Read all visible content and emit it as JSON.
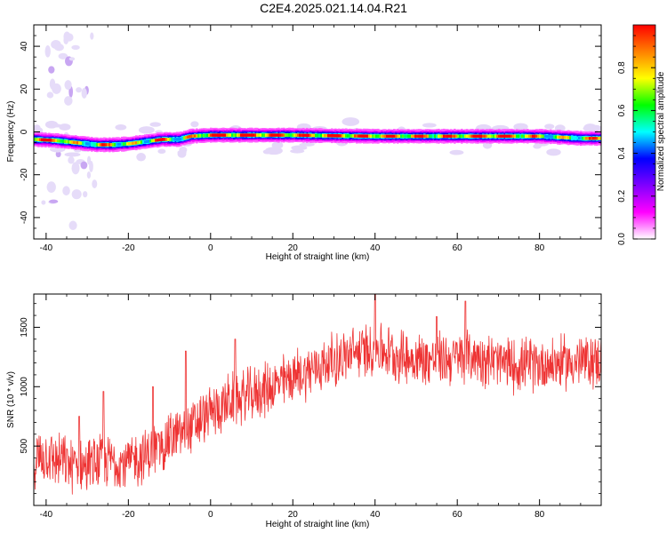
{
  "title": "C2E4.2025.021.14.04.R21",
  "chart_data": [
    {
      "type": "heatmap",
      "xlabel": "Height of straight line (km)",
      "ylabel": "Frequency (Hz)",
      "xlim": [
        -43,
        95
      ],
      "ylim": [
        -50,
        50
      ],
      "xticks": [
        -40,
        -20,
        0,
        20,
        40,
        60,
        80
      ],
      "yticks": [
        -40,
        -20,
        0,
        20,
        40
      ],
      "colorbar": {
        "label": "Normalized spectral amplitude",
        "range": [
          0,
          1
        ],
        "ticks": [
          0.0,
          0.2,
          0.4,
          0.6,
          0.8
        ],
        "tick_labels": [
          "0.0",
          "0.2",
          "0.4",
          "0.6",
          "0.8"
        ],
        "colormap": [
          "#ffffff",
          "#ff00ff",
          "#8000ff",
          "#0000ff",
          "#00ffff",
          "#00ff00",
          "#ffff00",
          "#ff8000",
          "#ff0000"
        ]
      },
      "ridge": {
        "x": [
          -43,
          -38,
          -33,
          -28,
          -24,
          -20,
          -16,
          -12,
          -8,
          -5,
          0,
          5,
          10,
          20,
          30,
          40,
          50,
          60,
          70,
          80,
          85,
          90,
          95
        ],
        "freq": [
          -3.5,
          -4,
          -5,
          -6,
          -6,
          -5.5,
          -4.5,
          -3.5,
          -3.5,
          -2,
          -1.5,
          -1.5,
          -1.5,
          -1.5,
          -1.8,
          -2,
          -2,
          -2,
          -2,
          -2,
          -2.5,
          -3,
          -3
        ],
        "amplitude": [
          0.8,
          0.9,
          0.6,
          0.7,
          0.8,
          0.6,
          0.7,
          0.9,
          0.5,
          0.7,
          0.95,
          0.9,
          0.95,
          0.85,
          0.9,
          0.85,
          0.8,
          0.85,
          0.95,
          0.7,
          0.6,
          0.7,
          0.8
        ]
      },
      "grid": false
    },
    {
      "type": "line",
      "xlabel": "Height of straight line (km)",
      "ylabel": "SNR (10 * v/v)",
      "xlim": [
        -43,
        95
      ],
      "ylim": [
        0,
        1780
      ],
      "xticks": [
        -40,
        -20,
        0,
        20,
        40,
        60,
        80
      ],
      "yticks": [
        500,
        1000,
        1500
      ],
      "series": [
        {
          "color": "#ee3333",
          "trend_x": [
            -43,
            -40,
            -35,
            -30,
            -25,
            -20,
            -15,
            -10,
            -5,
            0,
            5,
            10,
            15,
            20,
            25,
            30,
            35,
            40,
            45,
            50,
            55,
            60,
            65,
            70,
            75,
            80,
            85,
            90,
            95
          ],
          "trend_y": [
            380,
            420,
            350,
            330,
            380,
            360,
            430,
            560,
            640,
            780,
            880,
            930,
            1000,
            1080,
            1150,
            1220,
            1280,
            1330,
            1270,
            1230,
            1230,
            1240,
            1260,
            1200,
            1180,
            1190,
            1200,
            1210,
            1220
          ],
          "noise_amplitude": 220,
          "peaks": [
            [
              -32,
              750
            ],
            [
              -26,
              960
            ],
            [
              -14,
              1000
            ],
            [
              -6,
              1300
            ],
            [
              6,
              1400
            ],
            [
              40,
              1780
            ],
            [
              55,
              1590
            ],
            [
              62,
              1720
            ]
          ]
        }
      ],
      "grid": false
    }
  ]
}
